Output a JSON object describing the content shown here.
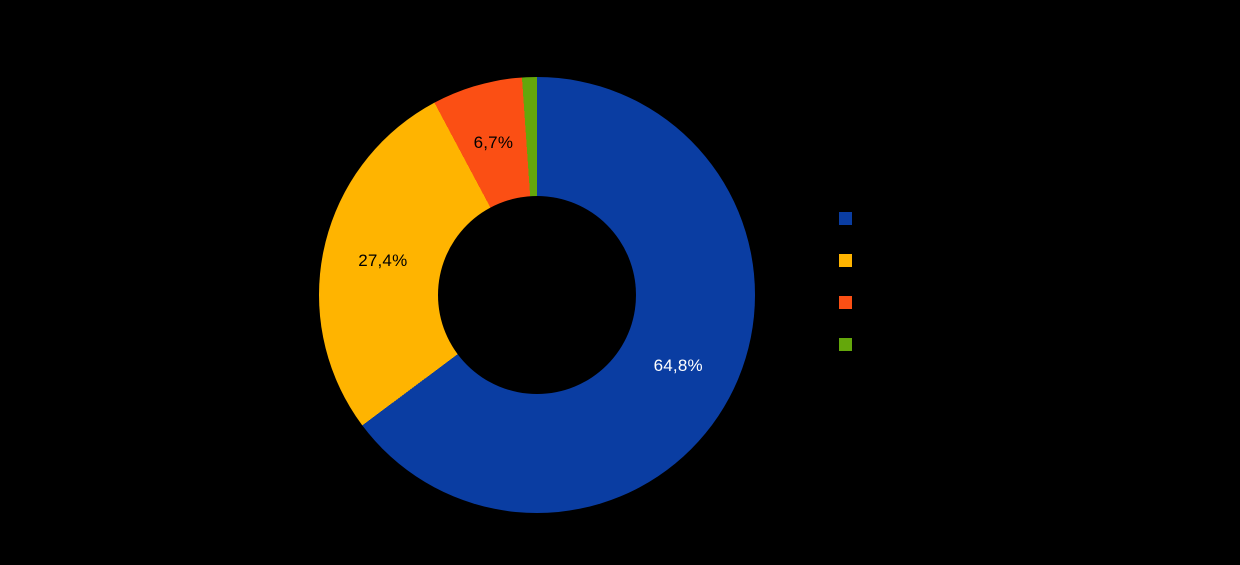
{
  "background": "#000000",
  "chart_data": {
    "type": "pie",
    "subtype": "donut",
    "start_angle_deg": 0,
    "direction": "clockwise",
    "legend_position": "right",
    "decimal_separator": ",",
    "series": [
      {
        "label": "",
        "value": 64.8,
        "display": "64,8%",
        "color": "#0a3da2",
        "label_color": "#ffffff"
      },
      {
        "label": "",
        "value": 27.4,
        "display": "27,4%",
        "color": "#ffb400",
        "label_color": "#000000"
      },
      {
        "label": "",
        "value": 6.7,
        "display": "6,7%",
        "color": "#fb4f14",
        "label_color": "#000000"
      },
      {
        "label": "",
        "value": 1.1,
        "display": "",
        "color": "#64a70b",
        "label_color": "#000000"
      }
    ]
  }
}
